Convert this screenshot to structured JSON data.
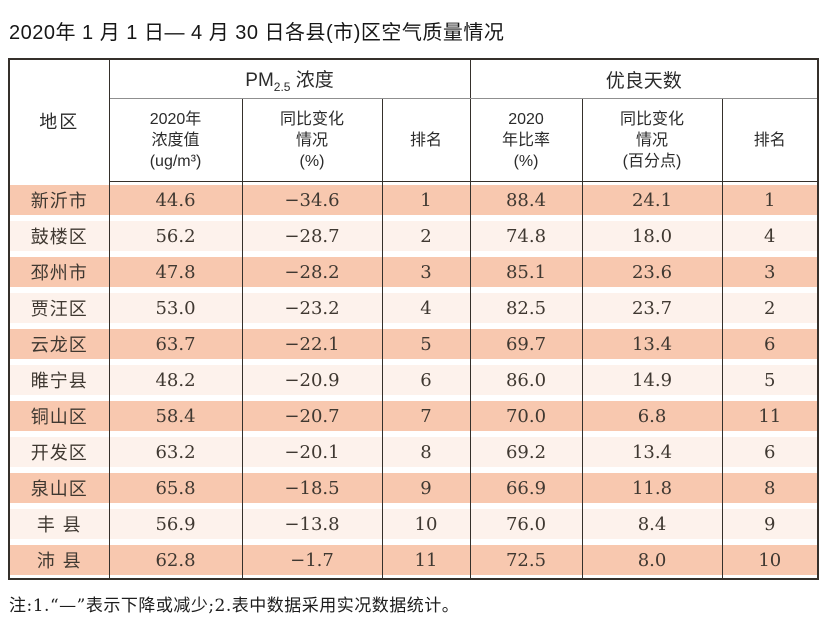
{
  "page": {
    "title": "2020年 1 月 1 日— 4 月 30 日各县(市)区空气质量情况",
    "note": "注:1.“—”表示下降或减少;2.表中数据采用实况数据统计。"
  },
  "colors": {
    "row_salmon": "#f8c8af",
    "row_light": "#fdf2ec",
    "table_border": "#35302b",
    "group_divider": "#8f8f8f"
  },
  "table": {
    "header": {
      "region": "地区",
      "pm_group": {
        "prefix": "PM",
        "sub": "2.5",
        "suffix": " 浓度"
      },
      "good_days_group": "优良天数",
      "sub": [
        "2020年\n浓度值\n(ug/m³)",
        "同比变化\n情况\n(%)",
        "排名",
        "2020\n年比率\n(%)",
        "同比变化\n情况\n(百分点)",
        "排名"
      ]
    },
    "rows": [
      [
        "新沂市",
        "44.6",
        "−34.6",
        "1",
        "88.4",
        "24.1",
        "1"
      ],
      [
        "鼓楼区",
        "56.2",
        "−28.7",
        "2",
        "74.8",
        "18.0",
        "4"
      ],
      [
        "邳州市",
        "47.8",
        "−28.2",
        "3",
        "85.1",
        "23.6",
        "3"
      ],
      [
        "贾汪区",
        "53.0",
        "−23.2",
        "4",
        "82.5",
        "23.7",
        "2"
      ],
      [
        "云龙区",
        "63.7",
        "−22.1",
        "5",
        "69.7",
        "13.4",
        "6"
      ],
      [
        "睢宁县",
        "48.2",
        "−20.9",
        "6",
        "86.0",
        "14.9",
        "5"
      ],
      [
        "铜山区",
        "58.4",
        "−20.7",
        "7",
        "70.0",
        "6.8",
        "11"
      ],
      [
        "开发区",
        "63.2",
        "−20.1",
        "8",
        "69.2",
        "13.4",
        "6"
      ],
      [
        "泉山区",
        "65.8",
        "−18.5",
        "9",
        "66.9",
        "11.8",
        "8"
      ],
      [
        "丰 县",
        "56.9",
        "−13.8",
        "10",
        "76.0",
        "8.4",
        "9"
      ],
      [
        "沛 县",
        "62.8",
        "−1.7",
        "11",
        "72.5",
        "8.0",
        "10"
      ]
    ]
  }
}
